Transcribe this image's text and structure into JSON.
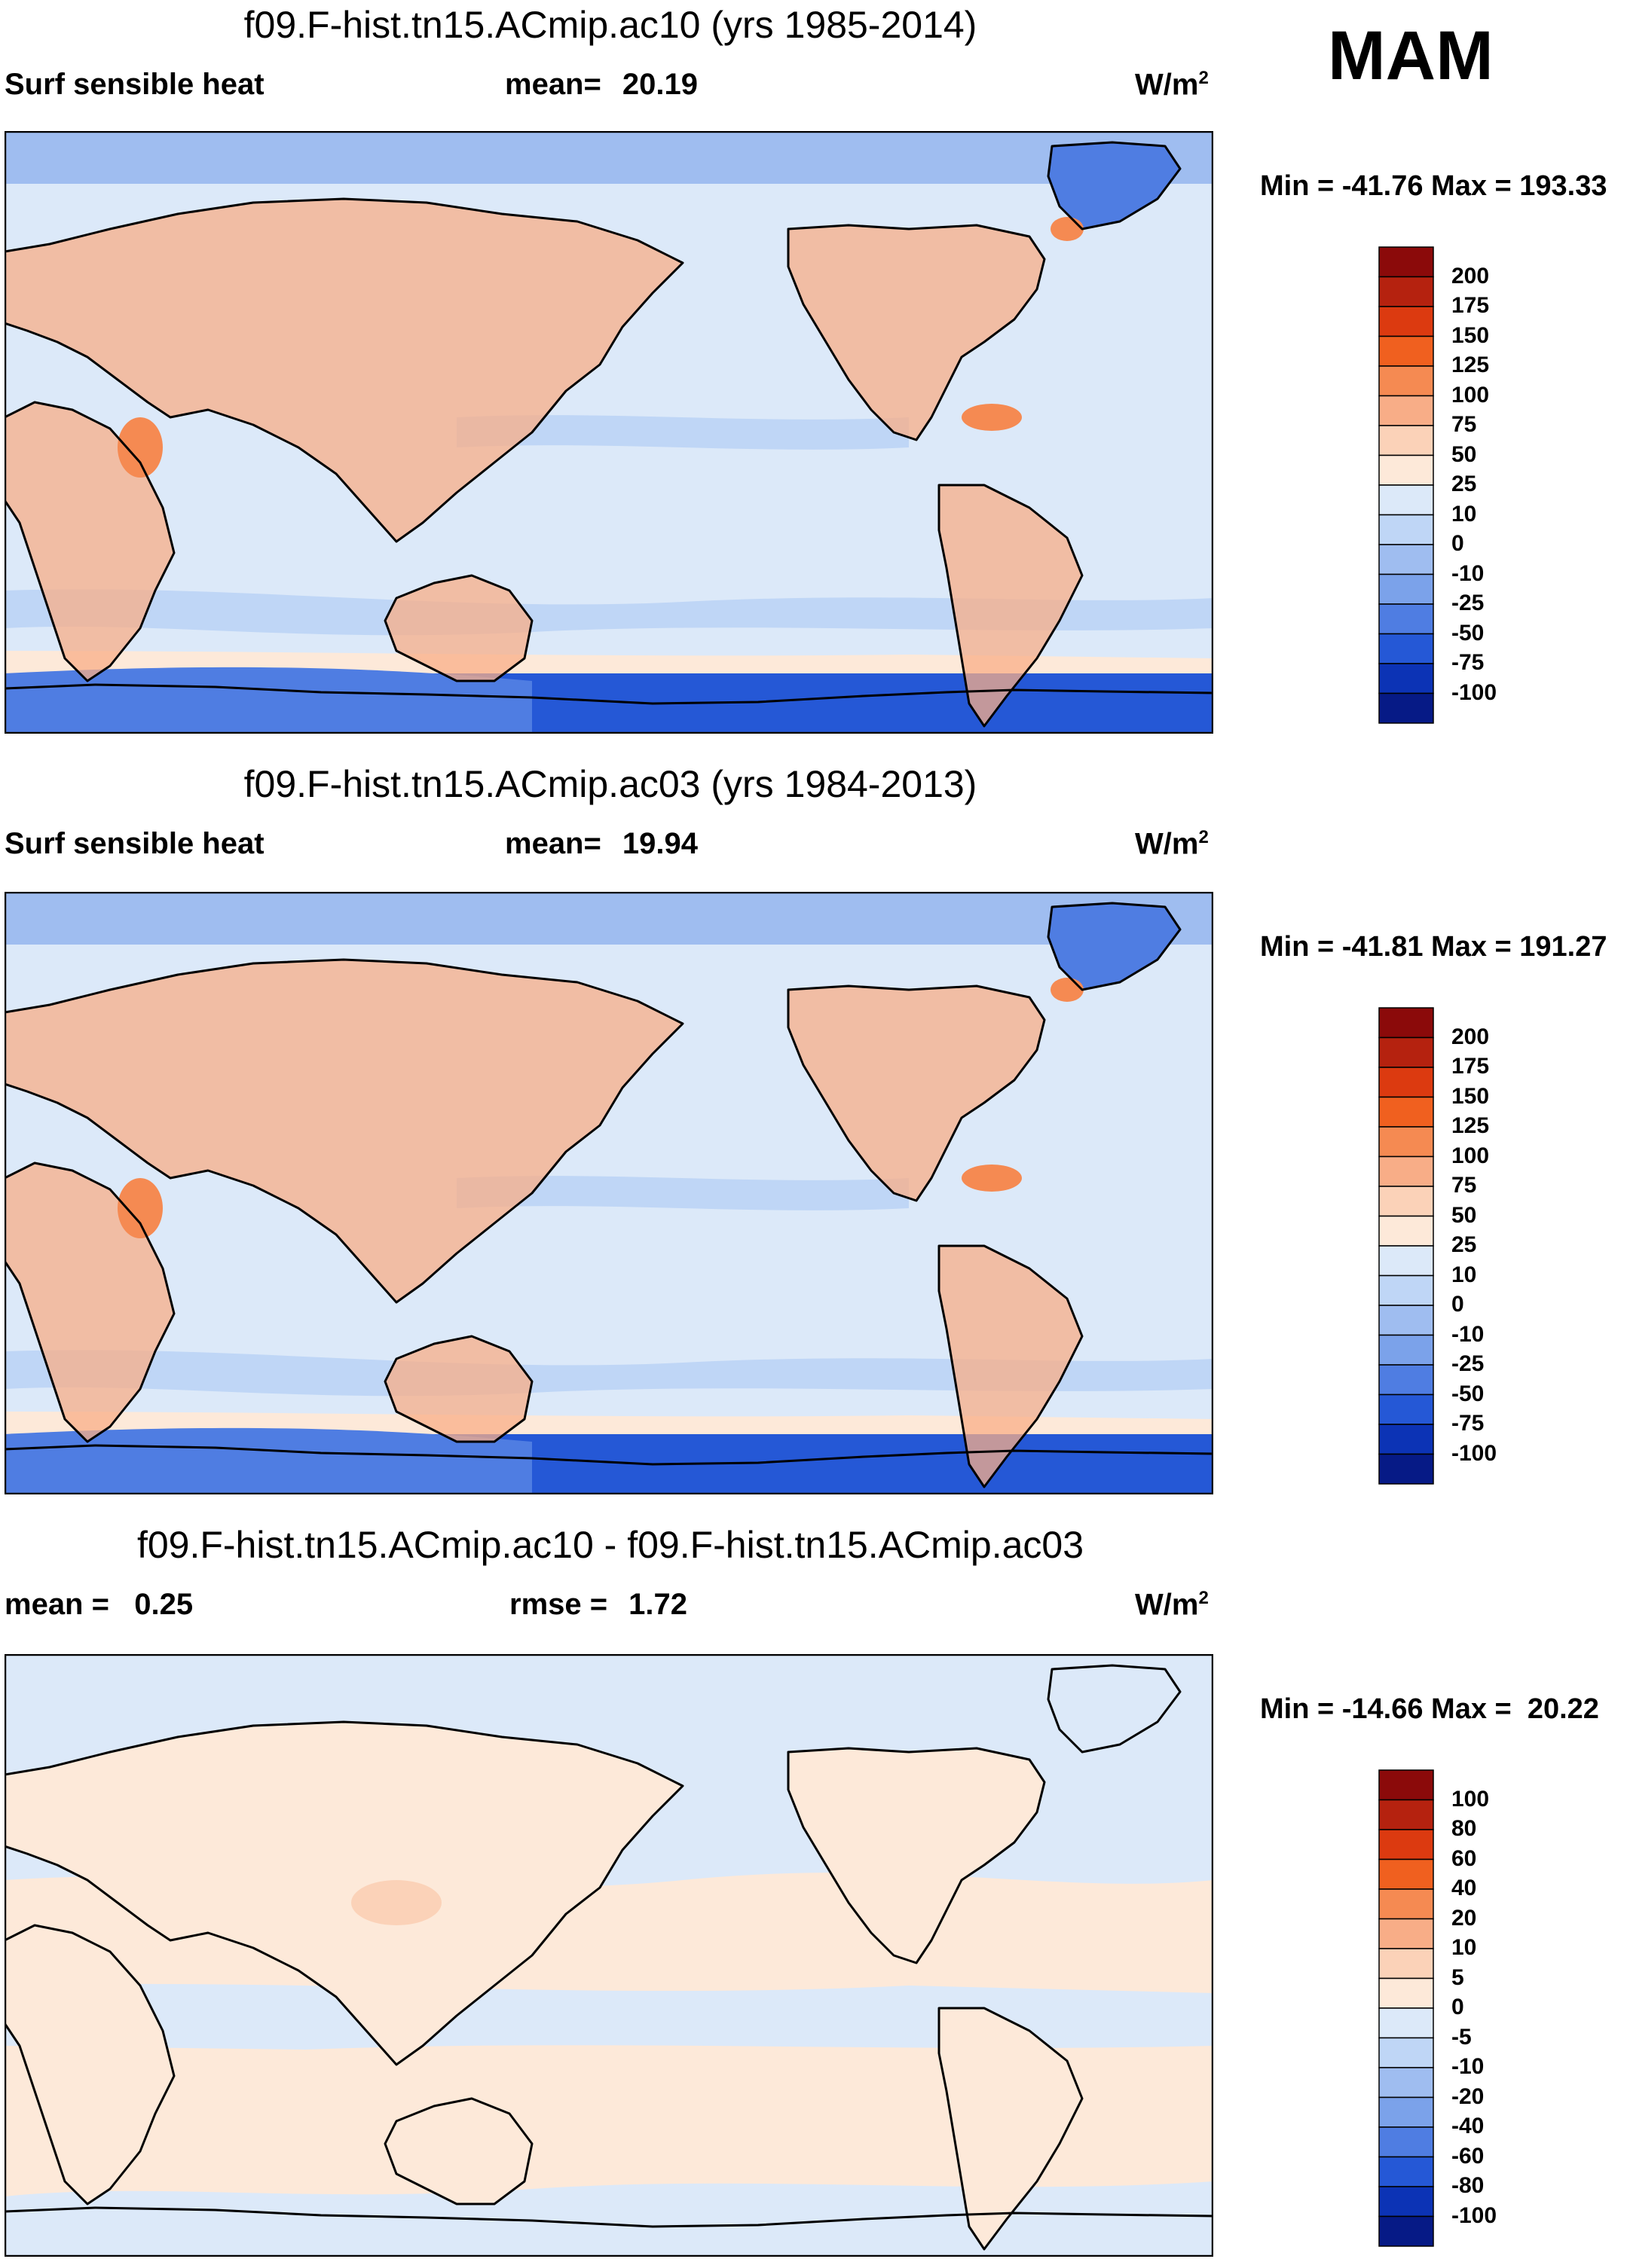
{
  "season": "MAM",
  "panels": [
    {
      "title": "f09.F-hist.tn15.ACmip.ac10 (yrs 1985-2014)",
      "left_label": "Surf sensible heat",
      "center_label": "mean=",
      "center_value": "20.19",
      "unit_base": "W/m",
      "unit_exp": "2",
      "minmax_text": "Min = -41.76 Max = 193.33",
      "colorbar": {
        "levels": [
          "200",
          "175",
          "150",
          "125",
          "100",
          "75",
          "50",
          "25",
          "10",
          "0",
          "-10",
          "-25",
          "-50",
          "-75",
          "-100"
        ],
        "colors": [
          "#8b0a0a",
          "#b5220f",
          "#dc3a10",
          "#f0601f",
          "#f58a52",
          "#f8ad87",
          "#fbd2b8",
          "#fde9d9",
          "#dce9f9",
          "#bfd6f6",
          "#9fbdf0",
          "#7ba2ea",
          "#4f7de2",
          "#2558d6",
          "#0c33b5",
          "#061a86"
        ]
      }
    },
    {
      "title": "f09.F-hist.tn15.ACmip.ac03 (yrs 1984-2013)",
      "left_label": "Surf sensible heat",
      "center_label": "mean=",
      "center_value": "19.94",
      "unit_base": "W/m",
      "unit_exp": "2",
      "minmax_text": "Min = -41.81 Max = 191.27",
      "colorbar": {
        "levels": [
          "200",
          "175",
          "150",
          "125",
          "100",
          "75",
          "50",
          "25",
          "10",
          "0",
          "-10",
          "-25",
          "-50",
          "-75",
          "-100"
        ],
        "colors": [
          "#8b0a0a",
          "#b5220f",
          "#dc3a10",
          "#f0601f",
          "#f58a52",
          "#f8ad87",
          "#fbd2b8",
          "#fde9d9",
          "#dce9f9",
          "#bfd6f6",
          "#9fbdf0",
          "#7ba2ea",
          "#4f7de2",
          "#2558d6",
          "#0c33b5",
          "#061a86"
        ]
      }
    },
    {
      "title": "f09.F-hist.tn15.ACmip.ac10 - f09.F-hist.tn15.ACmip.ac03",
      "left_label": "mean =   0.25",
      "center_label": "rmse =",
      "center_value": "1.72",
      "unit_base": "W/m",
      "unit_exp": "2",
      "minmax_text": "Min = -14.66 Max =  20.22",
      "colorbar": {
        "levels": [
          "100",
          "80",
          "60",
          "40",
          "20",
          "10",
          "5",
          "0",
          "-5",
          "-10",
          "-20",
          "-40",
          "-60",
          "-80",
          "-100"
        ],
        "colors": [
          "#8b0a0a",
          "#b5220f",
          "#dc3a10",
          "#f0601f",
          "#f58a52",
          "#f8ad87",
          "#fbd2b8",
          "#fde9d9",
          "#dce9f9",
          "#bfd6f6",
          "#9fbdf0",
          "#7ba2ea",
          "#4f7de2",
          "#2558d6",
          "#0c33b5",
          "#061a86"
        ]
      }
    }
  ],
  "chart_data": [
    {
      "type": "heatmap",
      "title": "f09.F-hist.tn15.ACmip.ac10 (yrs 1985-2014)",
      "variable": "Surf sensible heat",
      "units": "W/m2",
      "mean": 20.19,
      "min": -41.76,
      "max": 193.33,
      "contour_levels": [
        -100,
        -75,
        -50,
        -25,
        -10,
        0,
        10,
        25,
        50,
        75,
        100,
        125,
        150,
        175,
        200
      ]
    },
    {
      "type": "heatmap",
      "title": "f09.F-hist.tn15.ACmip.ac03 (yrs 1984-2013)",
      "variable": "Surf sensible heat",
      "units": "W/m2",
      "mean": 19.94,
      "min": -41.81,
      "max": 191.27,
      "contour_levels": [
        -100,
        -75,
        -50,
        -25,
        -10,
        0,
        10,
        25,
        50,
        75,
        100,
        125,
        150,
        175,
        200
      ]
    },
    {
      "type": "heatmap",
      "title": "f09.F-hist.tn15.ACmip.ac10 - f09.F-hist.tn15.ACmip.ac03",
      "units": "W/m2",
      "mean": 0.25,
      "rmse": 1.72,
      "min": -14.66,
      "max": 20.22,
      "contour_levels": [
        -100,
        -80,
        -60,
        -40,
        -20,
        -10,
        -5,
        0,
        5,
        10,
        20,
        40,
        60,
        80,
        100
      ]
    }
  ]
}
